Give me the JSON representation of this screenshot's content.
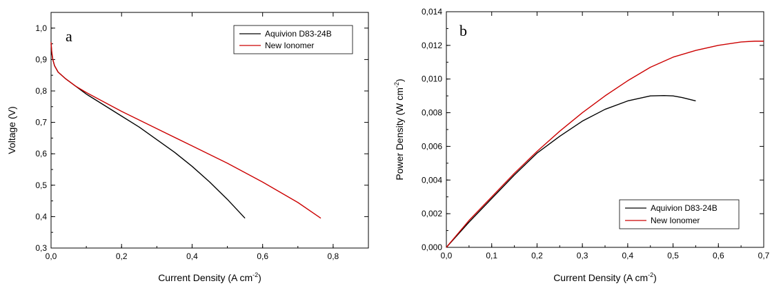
{
  "chart_data": [
    {
      "type": "line",
      "panel_label": "a",
      "xlabel": "Current Density (A cm",
      "xlabel_sup": "-2",
      "xlabel_tail": ")",
      "ylabel": "Voltage (V)",
      "xlim": [
        0,
        0.9
      ],
      "ylim": [
        0.3,
        1.05
      ],
      "xticks": [
        0.0,
        0.2,
        0.4,
        0.6,
        0.8
      ],
      "yticks": [
        0.3,
        0.4,
        0.5,
        0.6,
        0.7,
        0.8,
        0.9,
        1.0
      ],
      "xticklabels": [
        "0,0",
        "0,2",
        "0,4",
        "0,6",
        "0,8"
      ],
      "yticklabels": [
        "0,3",
        "0,4",
        "0,5",
        "0,6",
        "0,7",
        "0,8",
        "0,9",
        "1,0"
      ],
      "legend_position": "top-right",
      "series": [
        {
          "name": "Aquivion D83-24B",
          "color": "#000000",
          "x": [
            0,
            0.002,
            0.005,
            0.01,
            0.02,
            0.04,
            0.07,
            0.1,
            0.15,
            0.2,
            0.25,
            0.3,
            0.35,
            0.4,
            0.45,
            0.5,
            0.55
          ],
          "y": [
            0.95,
            0.92,
            0.9,
            0.88,
            0.86,
            0.84,
            0.815,
            0.79,
            0.755,
            0.72,
            0.685,
            0.645,
            0.605,
            0.56,
            0.51,
            0.455,
            0.395
          ]
        },
        {
          "name": "New Ionomer",
          "color": "#cc0000",
          "x": [
            0,
            0.002,
            0.005,
            0.01,
            0.02,
            0.04,
            0.07,
            0.1,
            0.15,
            0.2,
            0.3,
            0.4,
            0.5,
            0.6,
            0.7,
            0.765
          ],
          "y": [
            0.955,
            0.925,
            0.9,
            0.88,
            0.86,
            0.84,
            0.815,
            0.795,
            0.765,
            0.735,
            0.68,
            0.625,
            0.57,
            0.51,
            0.445,
            0.395
          ]
        }
      ]
    },
    {
      "type": "line",
      "panel_label": "b",
      "xlabel": "Current Density (A cm",
      "xlabel_sup": "-2",
      "xlabel_tail": ")",
      "ylabel": "Power Density (W cm",
      "ylabel_sup": "-2",
      "ylabel_tail": ")",
      "xlim": [
        0,
        0.7
      ],
      "ylim": [
        0,
        0.014
      ],
      "xticks": [
        0.0,
        0.1,
        0.2,
        0.3,
        0.4,
        0.5,
        0.6,
        0.7
      ],
      "yticks": [
        0.0,
        0.002,
        0.004,
        0.006,
        0.008,
        0.01,
        0.012,
        0.014
      ],
      "xticklabels": [
        "0,0",
        "0,1",
        "0,2",
        "0,3",
        "0,4",
        "0,5",
        "0,6",
        "0,7"
      ],
      "yticklabels": [
        "0,000",
        "0,002",
        "0,004",
        "0,006",
        "0,008",
        "0,010",
        "0,012",
        "0,014"
      ],
      "legend_position": "bottom-right",
      "series": [
        {
          "name": "Aquivion D83-24B",
          "color": "#000000",
          "x": [
            0,
            0.05,
            0.1,
            0.15,
            0.2,
            0.25,
            0.3,
            0.35,
            0.4,
            0.45,
            0.48,
            0.5,
            0.52,
            0.55
          ],
          "y": [
            0,
            0.0015,
            0.0029,
            0.0043,
            0.0056,
            0.0066,
            0.0075,
            0.0082,
            0.0087,
            0.009,
            0.00902,
            0.009,
            0.0089,
            0.0087
          ]
        },
        {
          "name": "New Ionomer",
          "color": "#cc0000",
          "x": [
            0,
            0.05,
            0.1,
            0.15,
            0.2,
            0.25,
            0.3,
            0.35,
            0.4,
            0.45,
            0.5,
            0.55,
            0.6,
            0.65,
            0.68,
            0.7
          ],
          "y": [
            0,
            0.0016,
            0.003,
            0.0044,
            0.0057,
            0.0069,
            0.008,
            0.009,
            0.0099,
            0.0107,
            0.0113,
            0.0117,
            0.012,
            0.0122,
            0.01225,
            0.01225
          ]
        }
      ]
    }
  ]
}
